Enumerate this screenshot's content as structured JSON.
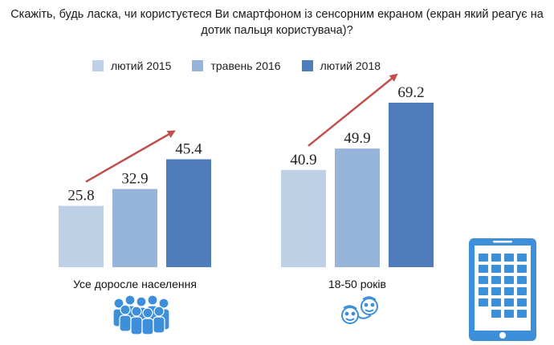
{
  "title": "Скажіть, будь ласка, чи користуєтеся Ви смартфоном із сенсорним екраном (екран який реагує на дотик пальця користувача)?",
  "colors": {
    "series": [
      "#bdd0e6",
      "#97b5da",
      "#4f7dbb"
    ],
    "arrow": "#c0504d",
    "icon": "#3e8fd9"
  },
  "icons": [
    "people-group-icon",
    "faces-icon",
    "smartphone-icon"
  ],
  "chart_data": {
    "type": "bar",
    "title": "Скажіть, будь ласка, чи користуєтеся Ви смартфоном із сенсорним екраном (екран який реагує на дотик пальця користувача)?",
    "categories": [
      "Усе доросле населення",
      "18-50 років"
    ],
    "series": [
      {
        "name": "лютий 2015",
        "values": [
          25.8,
          40.9
        ]
      },
      {
        "name": "травень 2016",
        "values": [
          32.9,
          49.9
        ]
      },
      {
        "name": "лютий 2018",
        "values": [
          45.4,
          69.2
        ]
      }
    ],
    "ylim": [
      0,
      80
    ],
    "grid": false,
    "legend": "top",
    "trend_arrows": true
  }
}
